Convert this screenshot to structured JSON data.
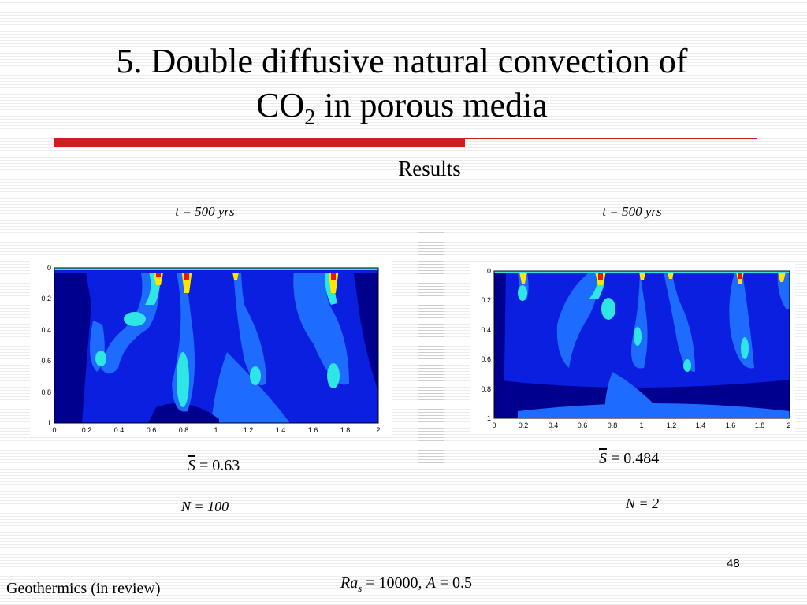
{
  "slide": {
    "title_line1": "5. Double diffusive natural convection of",
    "title_line2_pre": "CO",
    "title_line2_sub": "2",
    "title_line2_post": " in porous media",
    "subtitle": "Results",
    "page_number": "48"
  },
  "plots": [
    {
      "time_label": "t = 500 yrs",
      "formula_var": "S",
      "formula_value": " = 0.63",
      "n_label": "N = 100",
      "x_ticks": [
        "0",
        "0.2",
        "0.4",
        "0.6",
        "0.8",
        "1",
        "1.2",
        "1.4",
        "1.6",
        "1.8",
        "2"
      ],
      "y_ticks": [
        "0",
        "0.2",
        "0.4",
        "0.6",
        "0.8",
        "1"
      ]
    },
    {
      "time_label": "t = 500 yrs",
      "formula_var": "S",
      "formula_value": " = 0.484",
      "n_label": "N = 2",
      "x_ticks": [
        "0",
        "0.2",
        "0.4",
        "0.6",
        "0.8",
        "1",
        "1.2",
        "1.4",
        "1.6",
        "1.8",
        "2"
      ],
      "y_ticks": [
        "0",
        "0.2",
        "0.4",
        "0.6",
        "0.8",
        "1"
      ]
    }
  ],
  "footer": {
    "reference": "Geothermics (in review)",
    "ra_symbol": "Ra",
    "ra_sub": "s",
    "ra_value": " = 10000, ",
    "a_symbol": "A",
    "a_value": " = 0.5"
  },
  "colors": {
    "accent_red": "#cc1f1f",
    "field_deep": "#00008f",
    "field_mid": "#0a1fe0",
    "field_light": "#1e6cff",
    "plume_cyan": "#2ee6e6",
    "plume_yellow": "#ffe600",
    "plume_red": "#e61a00"
  }
}
